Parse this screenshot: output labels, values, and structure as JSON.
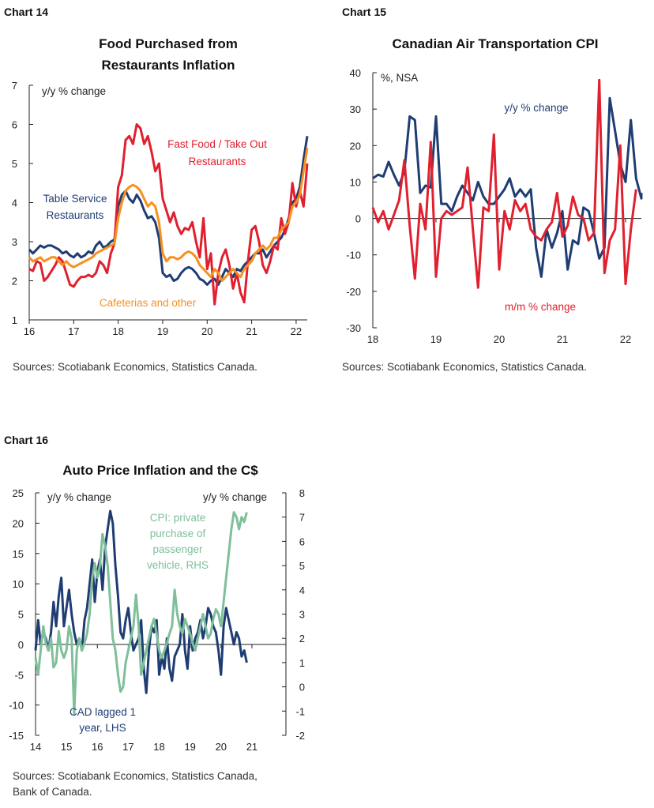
{
  "chart_data": [
    {
      "id": "chart14",
      "label": "Chart 14",
      "type": "line",
      "title": [
        "Food Purchased from",
        "Restaurants Inflation"
      ],
      "ylabel": "y/y % change",
      "ylim": [
        1,
        7
      ],
      "yticks": [
        "1",
        "2",
        "3",
        "4",
        "5",
        "6",
        "7"
      ],
      "xlim": [
        2016,
        2022.25
      ],
      "xticks": [
        {
          "v": 2016,
          "label": "16"
        },
        {
          "v": 2017,
          "label": "17"
        },
        {
          "v": 2018,
          "label": "18"
        },
        {
          "v": 2019,
          "label": "19"
        },
        {
          "v": 2020,
          "label": "20"
        },
        {
          "v": 2021,
          "label": "21"
        },
        {
          "v": 2022,
          "label": "22"
        }
      ],
      "source": "Sources: Scotiabank Economics, Statistics Canada.",
      "colors": {
        "table": "#1F3D73",
        "fast": "#E0202E",
        "cafe": "#F7901E"
      },
      "annotations": [
        {
          "series": "fast",
          "lines": [
            "Fast Food / Take Out",
            "Restaurants"
          ]
        },
        {
          "series": "table",
          "lines": [
            "Table Service",
            "Restaurants"
          ]
        },
        {
          "series": "cafe",
          "lines": [
            "Cafeterias and other"
          ]
        }
      ],
      "series": [
        {
          "key": "table",
          "name": "Table Service Restaurants",
          "start": 2016,
          "step": 0.0833333,
          "values": [
            2.8,
            2.7,
            2.8,
            2.9,
            2.85,
            2.9,
            2.9,
            2.85,
            2.8,
            2.7,
            2.75,
            2.65,
            2.6,
            2.7,
            2.6,
            2.65,
            2.75,
            2.7,
            2.9,
            3.0,
            2.85,
            2.9,
            3.0,
            3.05,
            3.9,
            4.2,
            4.3,
            4.1,
            4.0,
            4.2,
            4.05,
            3.8,
            3.6,
            3.65,
            3.5,
            3.1,
            2.2,
            2.1,
            2.15,
            2.0,
            2.05,
            2.2,
            2.3,
            2.35,
            2.3,
            2.2,
            2.05,
            2.0,
            1.9,
            2.0,
            2.05,
            1.9,
            2.1,
            2.3,
            2.2,
            2.1,
            2.3,
            2.25,
            2.4,
            2.5,
            2.6,
            2.7,
            2.7,
            2.8,
            2.6,
            2.75,
            2.9,
            3.0,
            3.1,
            3.3,
            3.6,
            4.0,
            4.1,
            4.4,
            5.1,
            5.7
          ]
        },
        {
          "key": "fast",
          "name": "Fast Food / Take Out Restaurants",
          "start": 2016,
          "step": 0.0833333,
          "values": [
            2.3,
            2.25,
            2.5,
            2.45,
            2.0,
            2.1,
            2.25,
            2.4,
            2.6,
            2.5,
            2.2,
            1.9,
            1.85,
            2.0,
            2.1,
            2.1,
            2.15,
            2.1,
            2.2,
            2.5,
            2.4,
            2.2,
            2.7,
            2.95,
            4.4,
            4.7,
            5.6,
            5.7,
            5.5,
            6.0,
            5.9,
            5.5,
            5.7,
            5.3,
            4.8,
            5.0,
            4.1,
            3.8,
            3.5,
            3.75,
            3.4,
            3.2,
            3.35,
            3.3,
            3.5,
            3.0,
            2.6,
            3.6,
            2.3,
            2.7,
            1.4,
            2.2,
            2.6,
            2.8,
            2.4,
            1.8,
            2.2,
            1.7,
            1.45,
            2.5,
            3.3,
            3.4,
            3.0,
            2.4,
            2.2,
            2.5,
            2.9,
            2.8,
            3.6,
            3.2,
            3.5,
            4.5,
            3.9,
            4.3,
            3.9,
            5.0
          ]
        },
        {
          "key": "cafe",
          "name": "Cafeterias and other",
          "start": 2016,
          "step": 0.0833333,
          "values": [
            2.6,
            2.5,
            2.55,
            2.6,
            2.5,
            2.55,
            2.6,
            2.6,
            2.5,
            2.4,
            2.5,
            2.4,
            2.35,
            2.4,
            2.45,
            2.5,
            2.55,
            2.6,
            2.7,
            2.75,
            2.8,
            2.85,
            2.9,
            2.95,
            3.6,
            4.0,
            4.3,
            4.4,
            4.45,
            4.4,
            4.3,
            4.1,
            3.9,
            4.0,
            3.9,
            3.5,
            2.7,
            2.5,
            2.6,
            2.6,
            2.55,
            2.6,
            2.7,
            2.75,
            2.7,
            2.6,
            2.4,
            2.3,
            2.2,
            2.1,
            2.3,
            2.2,
            2.0,
            2.1,
            2.2,
            2.3,
            2.2,
            2.1,
            2.3,
            2.4,
            2.5,
            2.7,
            2.8,
            2.9,
            2.8,
            2.9,
            3.1,
            3.1,
            3.3,
            3.4,
            3.5,
            3.9,
            4.0,
            4.2,
            4.8,
            5.4
          ]
        }
      ]
    },
    {
      "id": "chart15",
      "label": "Chart 15",
      "type": "line",
      "title": [
        "Canadian Air Transportation CPI"
      ],
      "ylabel": "%, NSA",
      "ylim": [
        -30,
        40
      ],
      "yticks": [
        "-30",
        "-20",
        "-10",
        "0",
        "10",
        "20",
        "30",
        "40"
      ],
      "xlim": [
        2018,
        2022.25
      ],
      "xticks": [
        {
          "v": 2018,
          "label": "18"
        },
        {
          "v": 2019,
          "label": "19"
        },
        {
          "v": 2020,
          "label": "20"
        },
        {
          "v": 2021,
          "label": "21"
        },
        {
          "v": 2022,
          "label": "22"
        }
      ],
      "source": "Sources: Scotiabank Economics, Statistics Canada.",
      "colors": {
        "yoy": "#1F3D73",
        "mom": "#E0202E"
      },
      "annotations": [
        {
          "series": "yoy",
          "lines": [
            "y/y % change"
          ]
        },
        {
          "series": "mom",
          "lines": [
            "m/m % change"
          ]
        }
      ],
      "series": [
        {
          "key": "yoy",
          "name": "y/y % change",
          "start": 2018,
          "step": 0.0833333,
          "values": [
            11,
            12,
            11.5,
            15.5,
            12,
            9,
            13,
            28,
            27,
            7,
            9,
            8.5,
            28,
            4,
            4,
            2,
            6,
            9,
            7,
            5,
            10,
            6,
            4,
            4,
            6,
            8,
            11,
            6,
            8,
            6,
            8,
            -8,
            -16,
            -3,
            -8,
            -4,
            2,
            -14,
            -6,
            -7,
            3,
            2,
            -4,
            -11,
            -8,
            33,
            24,
            15,
            10,
            27,
            11,
            5.5,
            7
          ]
        },
        {
          "key": "mom",
          "name": "m/m % change",
          "start": 2018,
          "step": 0.0833333,
          "values": [
            3,
            -1,
            2,
            -3,
            1,
            5,
            16,
            -2,
            -16.5,
            4,
            -3,
            21,
            -16,
            0,
            2,
            1,
            2,
            3,
            14,
            -3,
            -19,
            3,
            2,
            23,
            -14,
            2,
            -3,
            5,
            2,
            4,
            -3,
            -5,
            -6,
            -3,
            -1,
            7,
            -5,
            -2,
            6,
            1,
            0,
            -6,
            -4,
            38,
            -15,
            -6,
            -3,
            20,
            -18,
            -3,
            8
          ]
        }
      ]
    },
    {
      "id": "chart16",
      "label": "Chart 16",
      "type": "line",
      "title": [
        "Auto Price Inflation and the C$"
      ],
      "ylabel_left": "y/y % change",
      "ylabel_right": "y/y % change",
      "ylim_left": [
        -15,
        25
      ],
      "ylim_right": [
        -2,
        8
      ],
      "yticks_left": [
        "-15",
        "-10",
        "-5",
        "0",
        "5",
        "10",
        "15",
        "20",
        "25"
      ],
      "yticks_right": [
        "-2",
        "-1",
        "0",
        "1",
        "2",
        "3",
        "4",
        "5",
        "6",
        "7",
        "8"
      ],
      "xlim": [
        2014,
        2022.1
      ],
      "xticks": [
        {
          "v": 2014,
          "label": "14"
        },
        {
          "v": 2015,
          "label": "15"
        },
        {
          "v": 2016,
          "label": "16"
        },
        {
          "v": 2017,
          "label": "17"
        },
        {
          "v": 2018,
          "label": "18"
        },
        {
          "v": 2019,
          "label": "19"
        },
        {
          "v": 2020,
          "label": "20"
        },
        {
          "v": 2021,
          "label": "21"
        }
      ],
      "source": [
        "Sources: Scotiabank Economics, Statistics Canada,",
        "Bank of Canada."
      ],
      "colors": {
        "cad": "#1F3D73",
        "cpi": "#7FBF9A"
      },
      "annotations": [
        {
          "series": "cpi",
          "lines": [
            "CPI: private",
            "purchase of",
            "passenger",
            "vehicle, RHS"
          ]
        },
        {
          "series": "cad",
          "lines": [
            "CAD lagged 1",
            "year, LHS"
          ]
        }
      ],
      "series": [
        {
          "key": "cad",
          "name": "CAD lagged 1 year, LHS",
          "axis": "left",
          "start": 2014,
          "step": 0.0833333,
          "values": [
            -1,
            4,
            0,
            2,
            1,
            -1,
            2,
            7,
            3,
            8,
            11,
            3,
            6,
            9,
            5,
            2,
            0,
            1,
            -1,
            4,
            6,
            10,
            14,
            7,
            12,
            14,
            9,
            16,
            19,
            22,
            20,
            13,
            8,
            2,
            1,
            4,
            6,
            2,
            -1,
            0,
            1,
            4,
            -4,
            -8,
            -1,
            3,
            2,
            4,
            -5,
            -2,
            -4,
            1,
            -4,
            -6,
            -2,
            -1,
            0,
            5,
            -1,
            -4,
            3,
            -1,
            1,
            2,
            4,
            1,
            3,
            6,
            5,
            3,
            2,
            -1,
            -5,
            3,
            6,
            4,
            2,
            0,
            2,
            1,
            -2,
            -1,
            -3
          ]
        },
        {
          "key": "cpi",
          "name": "CPI: private purchase of passenger vehicle, RHS",
          "axis": "right",
          "start": 2014,
          "step": 0.0833333,
          "values": [
            1.2,
            0.5,
            1.5,
            2.5,
            1.8,
            1.5,
            2.0,
            0.8,
            1.0,
            2.3,
            1.5,
            1.2,
            1.5,
            2.5,
            2.0,
            -1.1,
            1.5,
            2.0,
            1.5,
            1.8,
            2.2,
            3.0,
            4.5,
            5.1,
            4.5,
            5.0,
            6.3,
            5.8,
            5.0,
            3.5,
            2.0,
            1.5,
            0.5,
            -0.2,
            0.0,
            1.0,
            1.5,
            2.0,
            2.5,
            3.8,
            2.5,
            0.5,
            1.0,
            1.5,
            2.0,
            2.5,
            2.8,
            2.2,
            1.5,
            1.2,
            1.5,
            1.8,
            2.2,
            2.5,
            4.0,
            3.0,
            2.5,
            2.2,
            2.8,
            2.5,
            2.2,
            1.8,
            1.5,
            2.0,
            2.5,
            3.0,
            2.5,
            2.0,
            2.2,
            2.8,
            3.2,
            3.0,
            2.5,
            3.5,
            4.5,
            5.5,
            6.5,
            7.2,
            7.0,
            6.5,
            7.0,
            6.8,
            7.2
          ]
        }
      ]
    }
  ]
}
